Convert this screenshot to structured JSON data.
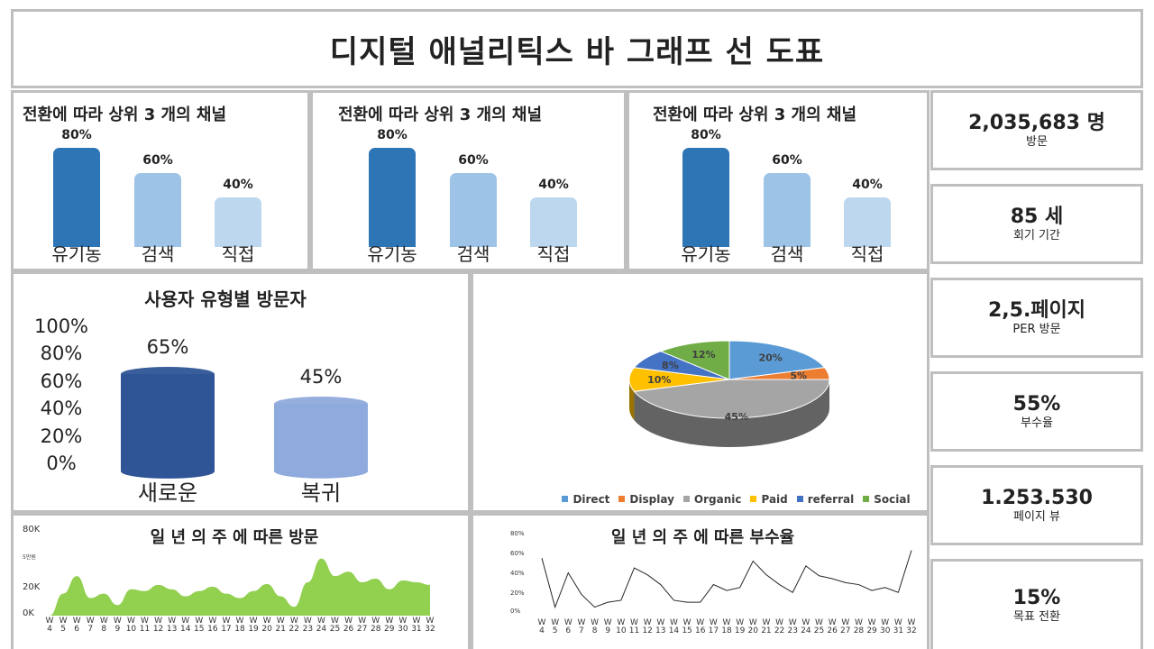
{
  "page_title": "디지털 애널리틱스 바 그래프 선 도표",
  "channel_charts": [
    {
      "title": "전환에 따라 상위 3 개의 채널",
      "bars": [
        {
          "label": "유기농",
          "value": "80%",
          "pct": 80,
          "color": "#2e75b6"
        },
        {
          "label": "검색",
          "value": "60%",
          "pct": 60,
          "color": "#9dc3e6"
        },
        {
          "label": "직접",
          "value": "40%",
          "pct": 40,
          "color": "#bdd7ee"
        }
      ]
    },
    {
      "title": "전환에 따라 상위 3 개의 채널",
      "bars": [
        {
          "label": "유기농",
          "value": "80%",
          "pct": 80,
          "color": "#2e75b6"
        },
        {
          "label": "검색",
          "value": "60%",
          "pct": 60,
          "color": "#9dc3e6"
        },
        {
          "label": "직접",
          "value": "40%",
          "pct": 40,
          "color": "#bdd7ee"
        }
      ]
    },
    {
      "title": "전환에 따라 상위 3 개의 채널",
      "bars": [
        {
          "label": "유기농",
          "value": "80%",
          "pct": 80,
          "color": "#2e75b6"
        },
        {
          "label": "검색",
          "value": "60%",
          "pct": 60,
          "color": "#9dc3e6"
        },
        {
          "label": "직접",
          "value": "40%",
          "pct": 40,
          "color": "#bdd7ee"
        }
      ]
    }
  ],
  "visitor_type": {
    "title": "사용자 유형별 방문자",
    "yticks": [
      "100%",
      "80%",
      "60%",
      "40%",
      "20%",
      "0%"
    ],
    "bars": [
      {
        "label": "새로운",
        "value": "65%",
        "pct": 65,
        "color": "#2f5597"
      },
      {
        "label": "복귀",
        "value": "45%",
        "pct": 45,
        "color": "#8faadc"
      }
    ]
  },
  "pie": {
    "slices": [
      {
        "name": "Direct",
        "value": 20,
        "label": "20%",
        "color": "#5b9bd5"
      },
      {
        "name": "Display",
        "value": 5,
        "label": "5%",
        "color": "#ed7d31"
      },
      {
        "name": "Organic",
        "value": 45,
        "label": "45%",
        "color": "#a5a5a5"
      },
      {
        "name": "Paid",
        "value": 10,
        "label": "10%",
        "color": "#ffc000"
      },
      {
        "name": "referral",
        "value": 8,
        "label": "8%",
        "color": "#4472c4"
      },
      {
        "name": "Social",
        "value": 12,
        "label": "12%",
        "color": "#70ad47"
      }
    ]
  },
  "kpis": [
    {
      "value": "2,035,683 명",
      "label": "방문"
    },
    {
      "value": "85 세",
      "label": "회기 기간"
    },
    {
      "value": "2,5.페이지",
      "label": "PER 방문"
    },
    {
      "value": "55%",
      "label": "부수율"
    },
    {
      "value": "1.253.530",
      "label": "페이지 뷰"
    },
    {
      "value": "15%",
      "label": "목표 전환"
    }
  ],
  "chart_data": [
    {
      "type": "area",
      "title": "일 년 의 주 에 따른 방문",
      "color": "#92d050",
      "x": [
        "W 4",
        "W 5",
        "W 6",
        "W 7",
        "W 8",
        "W 9",
        "W 10",
        "W 11",
        "W 12",
        "W 13",
        "W 14",
        "W 15",
        "W 16",
        "W 17",
        "W 18",
        "W 19",
        "W 20",
        "W 21",
        "W 22",
        "W 23",
        "W 24",
        "W 25",
        "W 26",
        "W 27",
        "W 28",
        "W 29",
        "W 30",
        "W 31",
        "W 32"
      ],
      "x_prefix": "W",
      "x_nums": [
        "4",
        "5",
        "6",
        "7",
        "8",
        "9",
        "10",
        "11",
        "12",
        "13",
        "14",
        "15",
        "16",
        "17",
        "18",
        "19",
        "20",
        "21",
        "22",
        "23",
        "24",
        "25",
        "26",
        "27",
        "28",
        "29",
        "30",
        "31",
        "32"
      ],
      "yticks": [
        "80K",
        "5만원",
        "20K",
        "0K"
      ],
      "values": [
        0,
        25,
        45,
        20,
        25,
        12,
        30,
        28,
        35,
        30,
        22,
        28,
        33,
        25,
        20,
        28,
        36,
        22,
        10,
        38,
        65,
        45,
        50,
        38,
        42,
        30,
        40,
        38,
        35
      ],
      "ylim": [
        0,
        80
      ]
    },
    {
      "type": "line",
      "title": "일 년 의 주 에 따른 부수율",
      "color": "#262626",
      "x_prefix": "W",
      "x_nums": [
        "4",
        "5",
        "6",
        "7",
        "8",
        "9",
        "10",
        "11",
        "12",
        "13",
        "14",
        "15",
        "16",
        "17",
        "18",
        "19",
        "20",
        "21",
        "22",
        "23",
        "24",
        "25",
        "26",
        "27",
        "28",
        "29",
        "30",
        "31",
        "32"
      ],
      "yticks": [
        "80%",
        "60%",
        "40%",
        "20%",
        "0%"
      ],
      "values": [
        55,
        5,
        40,
        18,
        5,
        10,
        12,
        45,
        38,
        28,
        12,
        10,
        10,
        28,
        22,
        25,
        52,
        38,
        28,
        20,
        47,
        37,
        34,
        30,
        28,
        22,
        25,
        20,
        63
      ],
      "ylim": [
        0,
        80
      ]
    }
  ]
}
